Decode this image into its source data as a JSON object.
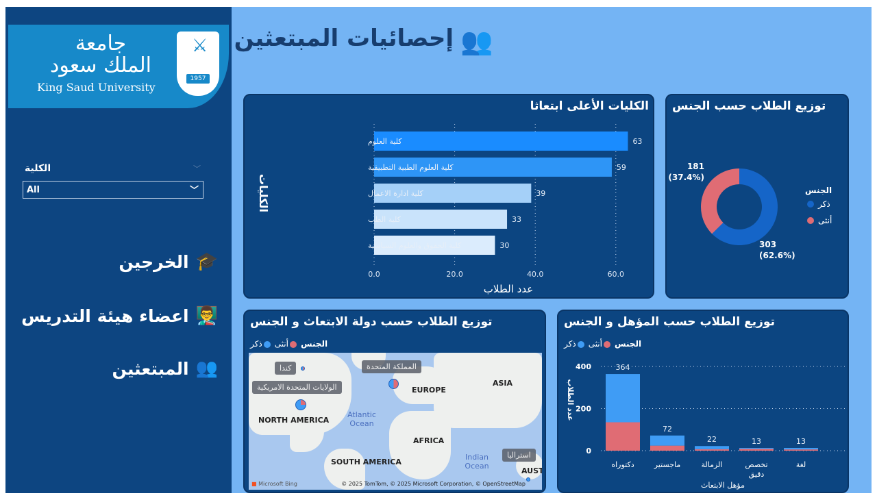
{
  "sidebar": {
    "logo": {
      "arabic_line1": "جامعة",
      "arabic_line2": "الملك سعود",
      "english": "King Saud University",
      "year": "1957"
    },
    "filter": {
      "label": "الكلية",
      "value": "All"
    },
    "nav": [
      {
        "label": "الخرجين",
        "icon": "graduation-cap-icon"
      },
      {
        "label": "اعضاء هيئة التدريس",
        "icon": "teacher-icon"
      },
      {
        "label": "المبتعثين",
        "icon": "students-icon"
      }
    ]
  },
  "header": {
    "title": "إحصائيات المبتعثين",
    "icon": "students-icon"
  },
  "colors": {
    "male": "#1565c8",
    "female": "#e06c74",
    "male_bar": "#3f9cf5"
  },
  "legend": {
    "title": "الجنس",
    "male": "ذكر",
    "female": "أنثى"
  },
  "map_panel": {
    "title": "توزيع الطلاب حسب دولة الابتعاث و الجنس",
    "continents": [
      "NORTH AMERICA",
      "EUROPE",
      "ASIA",
      "AFRICA",
      "SOUTH AMERICA",
      "AUSTI"
    ],
    "oceans": [
      "Atlantic Ocean",
      "Indian Ocean"
    ],
    "countries": [
      "كندا",
      "المملكة المتحدة",
      "الولايات المتحدة الامريكية",
      "استراليا"
    ],
    "attribution": "© 2025 TomTom, © 2025 Microsoft Corporation, © OpenStreetMap",
    "provider": "Microsoft Bing"
  },
  "chart_data": [
    {
      "type": "bar",
      "orientation": "horizontal",
      "title": "الكليات الأعلى ابتعاثا",
      "xlabel": "عدد الطلاب",
      "ylabel": "الكليات",
      "categories": [
        "كلية العلوم",
        "كلية العلوم الطبية التطبيقية",
        "كلية ادارة الاعمال",
        "كلية الطب",
        "كلية الحقوق والعلوم السياسية"
      ],
      "values": [
        63,
        59,
        39,
        33,
        30
      ],
      "value_labels": [
        "63",
        "59",
        "39",
        "33",
        "30"
      ],
      "xticks": [
        "0.0",
        "20.0",
        "40.0",
        "60.0"
      ],
      "xlim": [
        0,
        65
      ],
      "bar_colors": [
        "#1a8cff",
        "#2e95f6",
        "#a5d0f8",
        "#c9e3fb",
        "#dbecfd"
      ]
    },
    {
      "type": "pie",
      "donut": true,
      "title": "توزيع الطلاب حسب الجنس",
      "legend_title": "الجنس",
      "labels": [
        "ذكر",
        "أنثى"
      ],
      "values": [
        303,
        181
      ],
      "value_labels": [
        "303",
        "181"
      ],
      "percent_labels": [
        "(62.6%)",
        "(37.4%)"
      ],
      "legend_position": "right"
    },
    {
      "type": "bar",
      "stacked": true,
      "title": "توزيع الطلاب حسب المؤهل و الجنس",
      "xlabel": "مؤهل الابتعاث",
      "ylabel": "عدد الطلاب",
      "categories": [
        "دكتوراه",
        "ماجستير",
        "الزمالة",
        "تخصص دقيق",
        "لغة"
      ],
      "series": [
        {
          "name": "أنثى",
          "values": [
            135,
            24,
            7,
            9,
            6
          ]
        },
        {
          "name": "ذكر",
          "values": [
            229,
            48,
            15,
            4,
            7
          ]
        }
      ],
      "totals": [
        "364",
        "72",
        "22",
        "13",
        "13"
      ],
      "yticks": [
        "0",
        "200",
        "400"
      ],
      "ylim": [
        0,
        420
      ],
      "legend_position": "top-left"
    }
  ]
}
